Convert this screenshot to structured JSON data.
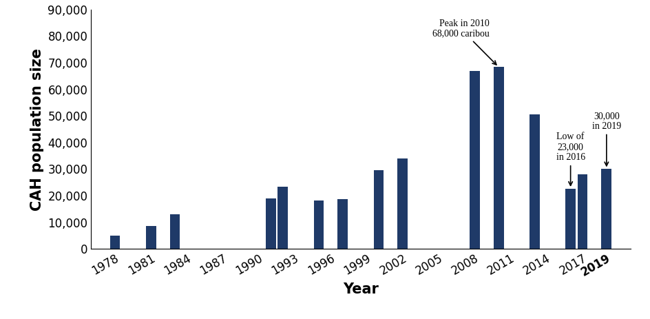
{
  "chart_data": {
    "type": "bar",
    "x_label": "Year",
    "y_label": "CAH population size",
    "x": [
      1978,
      1981,
      1983,
      1991,
      1992,
      1995,
      1997,
      2000,
      2002,
      2008,
      2010,
      2013,
      2016,
      2017,
      2019
    ],
    "values": [
      5000,
      8700,
      12900,
      19000,
      23400,
      18100,
      18800,
      29500,
      34000,
      66800,
      68400,
      50500,
      22600,
      28000,
      30000
    ],
    "color": "#1f3a68",
    "xlim": [
      1976,
      2021
    ],
    "xticks": [
      1978,
      1981,
      1984,
      1987,
      1990,
      1993,
      1996,
      1999,
      2002,
      2005,
      2008,
      2011,
      2014,
      2017,
      2019
    ],
    "ylim": [
      0,
      90000
    ],
    "yticks": [
      0,
      {
        "value": 10000,
        "label": "10,000"
      },
      {
        "value": 20000,
        "label": "20,000"
      },
      {
        "value": 30000,
        "label": "30,000"
      },
      {
        "value": 40000,
        "label": "40,000"
      },
      {
        "value": 50000,
        "label": "50,000"
      },
      {
        "value": 60000,
        "label": "60,000"
      },
      {
        "value": 70000,
        "label": "70,000"
      },
      {
        "value": 80000,
        "label": "80,000"
      },
      {
        "value": 90000,
        "label": "90,000"
      }
    ],
    "grid": false,
    "annotations": [
      {
        "text": "Peak in 2010\n68,000 caribou",
        "x": 2010
      },
      {
        "text": "Low of\n23,000\nin 2016",
        "x": 2016
      },
      {
        "text": "30,000\nin 2019",
        "x": 2019
      }
    ]
  }
}
